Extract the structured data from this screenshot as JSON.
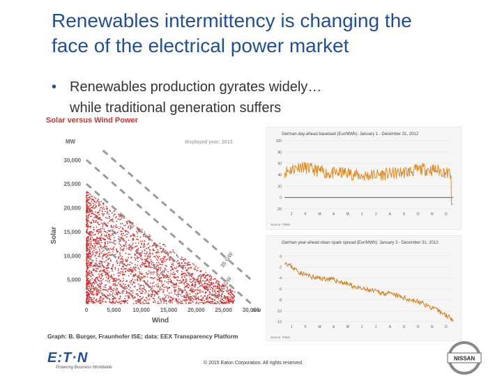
{
  "slide": {
    "title_line1": "Renewables intermittency is changing the",
    "title_line2": "face of the electrical power market",
    "bullet_symbol": "•",
    "bullet_line1": "Renewables production gyrates widely…",
    "bullet_line2": "while traditional generation suffers"
  },
  "scatter": {
    "title": "Solar versus Wind Power",
    "unit": "MW",
    "displayed_year": "displayed year: 2013",
    "ylabel": "Solar",
    "xlabel": "Wind",
    "y_ticks": [
      "30,000",
      "25,000",
      "20,000",
      "15,000",
      "10,000",
      "5,000"
    ],
    "x_ticks": [
      "0",
      "5,000",
      "10,000",
      "15,000",
      "20,000",
      "25,000",
      "30,000"
    ],
    "x_unit": "MW",
    "diagonal_labels": [
      "35 GW",
      "30 GW"
    ],
    "source": "Graph: B. Burger, Fraunhofer ISE; data: EEX Transparency Platform"
  },
  "chart_data": [
    {
      "type": "scatter",
      "title": "Solar versus Wind Power",
      "xlabel": "Wind",
      "ylabel": "Solar",
      "xlim": [
        0,
        30000
      ],
      "ylim": [
        0,
        32000
      ]
    },
    {
      "type": "line",
      "title": "German day-ahead baseload (Eur/MWh): January 1 - December 31, 2012",
      "categories": [
        "J",
        "F",
        "M",
        "A",
        "M",
        "J",
        "J",
        "A",
        "S",
        "O",
        "N",
        "D"
      ],
      "y_ticks": [
        "100",
        "80",
        "60",
        "40",
        "20",
        "0",
        "-20"
      ],
      "ylim": [
        -20,
        100
      ],
      "values": [
        45,
        55,
        48,
        42,
        44,
        38,
        40,
        42,
        45,
        50,
        48,
        40
      ],
      "source": "Source: Platts",
      "line_color": "#e08a1e"
    },
    {
      "type": "line",
      "title": "German year-ahead clean spark spread (Eur/MWh): January 3 - December 31, 2012",
      "categories": [
        "J",
        "F",
        "M",
        "A",
        "M",
        "J",
        "J",
        "A",
        "S",
        "O",
        "N",
        "D"
      ],
      "y_ticks": [
        "0",
        "-2",
        "-4",
        "-6",
        "-8",
        "-10",
        "-12"
      ],
      "ylim": [
        -12,
        1
      ],
      "values": [
        -1,
        -3,
        -4,
        -4.2,
        -5,
        -6,
        -6.5,
        -7,
        -7.8,
        -8.6,
        -10,
        -11.5
      ],
      "source": "Source: Platts",
      "line_color": "#d07f1a"
    }
  ],
  "footer": {
    "logo_text": "E:T·N",
    "tagline": "Powering Business Worldwide",
    "copyright": "© 2015 Eaton Corporation. All rights reserved.",
    "nissan_text": "NISSAN"
  },
  "colors": {
    "title": "#1f4e9c",
    "scatter_dots": "#d62c2c",
    "line": "#e08a1e"
  }
}
